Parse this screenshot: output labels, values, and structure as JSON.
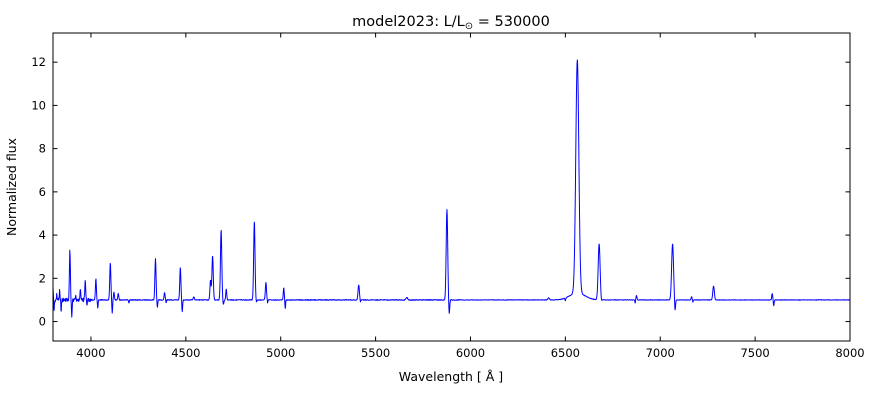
{
  "figure": {
    "title": {
      "prefix": "model2023: L/L",
      "sub": "⊙",
      "suffix": " = 530000"
    },
    "xlabel": "Wavelength [ Å ]",
    "ylabel": "Normalized flux"
  },
  "chart_data": {
    "type": "line",
    "title": "model2023: L/L⊙ = 530000",
    "xlabel": "Wavelength [ Å ]",
    "ylabel": "Normalized flux",
    "xlim": [
      3800,
      8000
    ],
    "ylim": [
      -0.9,
      13.35
    ],
    "xticks": [
      4000,
      4500,
      5000,
      5500,
      6000,
      6500,
      7000,
      7500,
      8000
    ],
    "yticks": [
      0,
      2,
      4,
      6,
      8,
      10,
      12
    ],
    "grid": false,
    "legend": "none",
    "line_color": "#0000ff",
    "frame_color": "#000000",
    "background_color": "#ffffff",
    "continuum_level": 1.0,
    "emission_lines": [
      {
        "wavelength": 3800,
        "peak_flux": 1.55,
        "sigma": 1.5
      },
      {
        "wavelength": 3820,
        "peak_flux": 1.25,
        "sigma": 1.5
      },
      {
        "wavelength": 3835,
        "peak_flux": 1.5,
        "sigma": 1.8
      },
      {
        "wavelength": 3889,
        "peak_flux": 3.3,
        "sigma": 2.5
      },
      {
        "wavelength": 3920,
        "peak_flux": 1.25,
        "sigma": 1.8
      },
      {
        "wavelength": 3944,
        "peak_flux": 1.55,
        "sigma": 2
      },
      {
        "wavelength": 3970,
        "peak_flux": 1.85,
        "sigma": 2.5
      },
      {
        "wavelength": 4026,
        "peak_flux": 2.0,
        "sigma": 2.5
      },
      {
        "wavelength": 4102,
        "peak_flux": 2.7,
        "sigma": 3
      },
      {
        "wavelength": 4121,
        "peak_flux": 1.35,
        "sigma": 2.5
      },
      {
        "wavelength": 4144,
        "peak_flux": 1.3,
        "sigma": 2.5
      },
      {
        "wavelength": 4340,
        "peak_flux": 2.9,
        "sigma": 3
      },
      {
        "wavelength": 4388,
        "peak_flux": 1.35,
        "sigma": 2.5
      },
      {
        "wavelength": 4471,
        "peak_flux": 2.5,
        "sigma": 3
      },
      {
        "wavelength": 4542,
        "peak_flux": 1.15,
        "sigma": 3
      },
      {
        "wavelength": 4630,
        "peak_flux": 1.9,
        "sigma": 3
      },
      {
        "wavelength": 4641,
        "peak_flux": 3.05,
        "sigma": 3.5
      },
      {
        "wavelength": 4686,
        "peak_flux": 4.25,
        "sigma": 3.5
      },
      {
        "wavelength": 4713,
        "peak_flux": 1.5,
        "sigma": 2.5
      },
      {
        "wavelength": 4861,
        "peak_flux": 4.65,
        "sigma": 3.5
      },
      {
        "wavelength": 4922,
        "peak_flux": 1.8,
        "sigma": 3
      },
      {
        "wavelength": 5016,
        "peak_flux": 1.55,
        "sigma": 2.5
      },
      {
        "wavelength": 5411,
        "peak_flux": 1.7,
        "sigma": 3.5
      },
      {
        "wavelength": 5664,
        "peak_flux": 1.12,
        "sigma": 4
      },
      {
        "wavelength": 5876,
        "peak_flux": 5.2,
        "sigma": 4
      },
      {
        "wavelength": 6412,
        "peak_flux": 1.1,
        "sigma": 4
      },
      {
        "wavelength": 6563,
        "peak_flux": 11.8,
        "sigma": 8
      },
      {
        "wavelength": 6563,
        "peak_flux": 1.32,
        "sigma": 40
      },
      {
        "wavelength": 6678,
        "peak_flux": 3.6,
        "sigma": 5
      },
      {
        "wavelength": 6875,
        "peak_flux": 1.2,
        "sigma": 2.5
      },
      {
        "wavelength": 7065,
        "peak_flux": 3.6,
        "sigma": 5
      },
      {
        "wavelength": 7165,
        "peak_flux": 1.15,
        "sigma": 2.5
      },
      {
        "wavelength": 7281,
        "peak_flux": 1.65,
        "sigma": 4
      },
      {
        "wavelength": 7590,
        "peak_flux": 1.3,
        "sigma": 2.5
      }
    ],
    "absorption_dips": [
      {
        "wavelength": 3806,
        "min_flux": 0.55,
        "sigma": 1.5
      },
      {
        "wavelength": 3843,
        "min_flux": 0.5,
        "sigma": 1.5
      },
      {
        "wavelength": 3899,
        "min_flux": 0.25,
        "sigma": 2
      },
      {
        "wavelength": 3979,
        "min_flux": 0.8,
        "sigma": 1.5
      },
      {
        "wavelength": 4036,
        "min_flux": 0.63,
        "sigma": 1.8
      },
      {
        "wavelength": 4112,
        "min_flux": 0.4,
        "sigma": 2
      },
      {
        "wavelength": 4200,
        "min_flux": 0.85,
        "sigma": 2
      },
      {
        "wavelength": 4350,
        "min_flux": 0.65,
        "sigma": 2
      },
      {
        "wavelength": 4396,
        "min_flux": 0.85,
        "sigma": 1.5
      },
      {
        "wavelength": 4481,
        "min_flux": 0.45,
        "sigma": 2
      },
      {
        "wavelength": 4698,
        "min_flux": 0.8,
        "sigma": 2.5
      },
      {
        "wavelength": 4872,
        "min_flux": 0.9,
        "sigma": 2
      },
      {
        "wavelength": 4931,
        "min_flux": 0.85,
        "sigma": 1.5
      },
      {
        "wavelength": 5024,
        "min_flux": 0.6,
        "sigma": 1.8
      },
      {
        "wavelength": 5420,
        "min_flux": 0.9,
        "sigma": 1.5
      },
      {
        "wavelength": 5888,
        "min_flux": 0.35,
        "sigma": 2.5
      },
      {
        "wavelength": 6500,
        "min_flux": 0.88,
        "sigma": 2
      },
      {
        "wavelength": 6690,
        "min_flux": 0.9,
        "sigma": 2
      },
      {
        "wavelength": 6868,
        "min_flux": 0.85,
        "sigma": 1.5
      },
      {
        "wavelength": 7078,
        "min_flux": 0.45,
        "sigma": 2.5
      },
      {
        "wavelength": 7172,
        "min_flux": 0.9,
        "sigma": 1.5
      },
      {
        "wavelength": 7598,
        "min_flux": 0.72,
        "sigma": 2
      }
    ],
    "noise": {
      "amplitude_below_4000": 0.085,
      "amplitude_mid": 0.018,
      "amplitude_red": 0.012
    }
  }
}
